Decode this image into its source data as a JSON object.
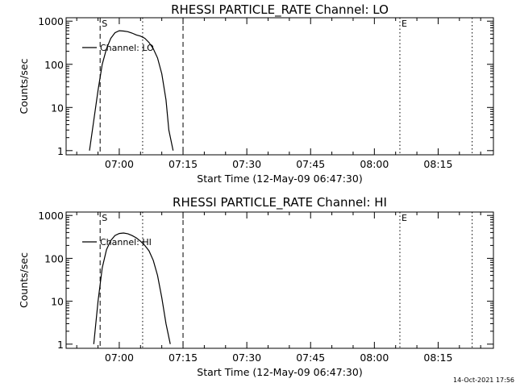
{
  "chart_data": [
    {
      "type": "line",
      "title": "RHESSI PARTICLE_RATE Channel: LO",
      "xlabel": "Start Time (12-May-09 06:47:30)",
      "ylabel": "Counts/sec",
      "y_scale": "log",
      "ylim": [
        0.8,
        1200
      ],
      "xlim": [
        "06:47:30",
        "08:28:00"
      ],
      "x_tick_labels": [
        "07:00",
        "07:15",
        "07:30",
        "07:45",
        "08:00",
        "08:15"
      ],
      "x_tick_values": [
        "07:00",
        "07:15",
        "07:30",
        "07:45",
        "08:00",
        "08:15"
      ],
      "y_tick_labels": [
        "1",
        "10",
        "100",
        "1000"
      ],
      "y_tick_values": [
        1,
        10,
        100,
        1000
      ],
      "legend": "top-left",
      "series": [
        {
          "name": "Channel: LO",
          "x": [
            "06:53:00",
            "06:54:00",
            "06:55:00",
            "06:56:00",
            "06:57:00",
            "06:58:00",
            "06:59:00",
            "07:00:00",
            "07:01:00",
            "07:02:00",
            "07:03:00",
            "07:04:00",
            "07:05:00",
            "07:06:00",
            "07:07:00",
            "07:08:00",
            "07:09:00",
            "07:10:00",
            "07:11:00",
            "07:11:40",
            "07:12:40"
          ],
          "y": [
            1,
            5,
            25,
            100,
            230,
            400,
            540,
            600,
            590,
            570,
            530,
            480,
            450,
            400,
            320,
            230,
            140,
            60,
            15,
            3,
            1
          ]
        }
      ],
      "markers": [
        {
          "label": "S",
          "x": "06:55:30",
          "style": "dashed"
        },
        {
          "label": "",
          "x": "07:05:30",
          "style": "dotted"
        },
        {
          "label": "",
          "x": "07:15:00",
          "style": "dashed"
        },
        {
          "label": "E",
          "x": "08:06:00",
          "style": "dotted"
        },
        {
          "label": "",
          "x": "08:23:00",
          "style": "dotted"
        }
      ]
    },
    {
      "type": "line",
      "title": "RHESSI PARTICLE_RATE Channel: HI",
      "xlabel": "Start Time (12-May-09 06:47:30)",
      "ylabel": "Counts/sec",
      "y_scale": "log",
      "ylim": [
        0.8,
        1200
      ],
      "xlim": [
        "06:47:30",
        "08:28:00"
      ],
      "x_tick_labels": [
        "07:00",
        "07:15",
        "07:30",
        "07:45",
        "08:00",
        "08:15"
      ],
      "x_tick_values": [
        "07:00",
        "07:15",
        "07:30",
        "07:45",
        "08:00",
        "08:15"
      ],
      "y_tick_labels": [
        "1",
        "10",
        "100",
        "1000"
      ],
      "y_tick_values": [
        1,
        10,
        100,
        1000
      ],
      "legend": "top-left",
      "series": [
        {
          "name": "Channel: HI",
          "x": [
            "06:54:00",
            "06:55:00",
            "06:56:00",
            "06:57:00",
            "06:58:00",
            "06:59:00",
            "07:00:00",
            "07:01:00",
            "07:02:00",
            "07:03:00",
            "07:04:00",
            "07:05:00",
            "07:06:00",
            "07:07:00",
            "07:08:00",
            "07:09:00",
            "07:10:00",
            "07:11:00",
            "07:12:00"
          ],
          "y": [
            1,
            10,
            60,
            160,
            260,
            340,
            380,
            390,
            375,
            340,
            300,
            250,
            200,
            150,
            90,
            40,
            12,
            3,
            1
          ]
        }
      ],
      "markers": [
        {
          "label": "S",
          "x": "06:55:30",
          "style": "dashed"
        },
        {
          "label": "",
          "x": "07:05:30",
          "style": "dotted"
        },
        {
          "label": "",
          "x": "07:15:00",
          "style": "dashed"
        },
        {
          "label": "E",
          "x": "08:06:00",
          "style": "dotted"
        },
        {
          "label": "",
          "x": "08:23:00",
          "style": "dotted"
        }
      ]
    }
  ],
  "footer": {
    "timestamp": "14-Oct-2021 17:56"
  }
}
